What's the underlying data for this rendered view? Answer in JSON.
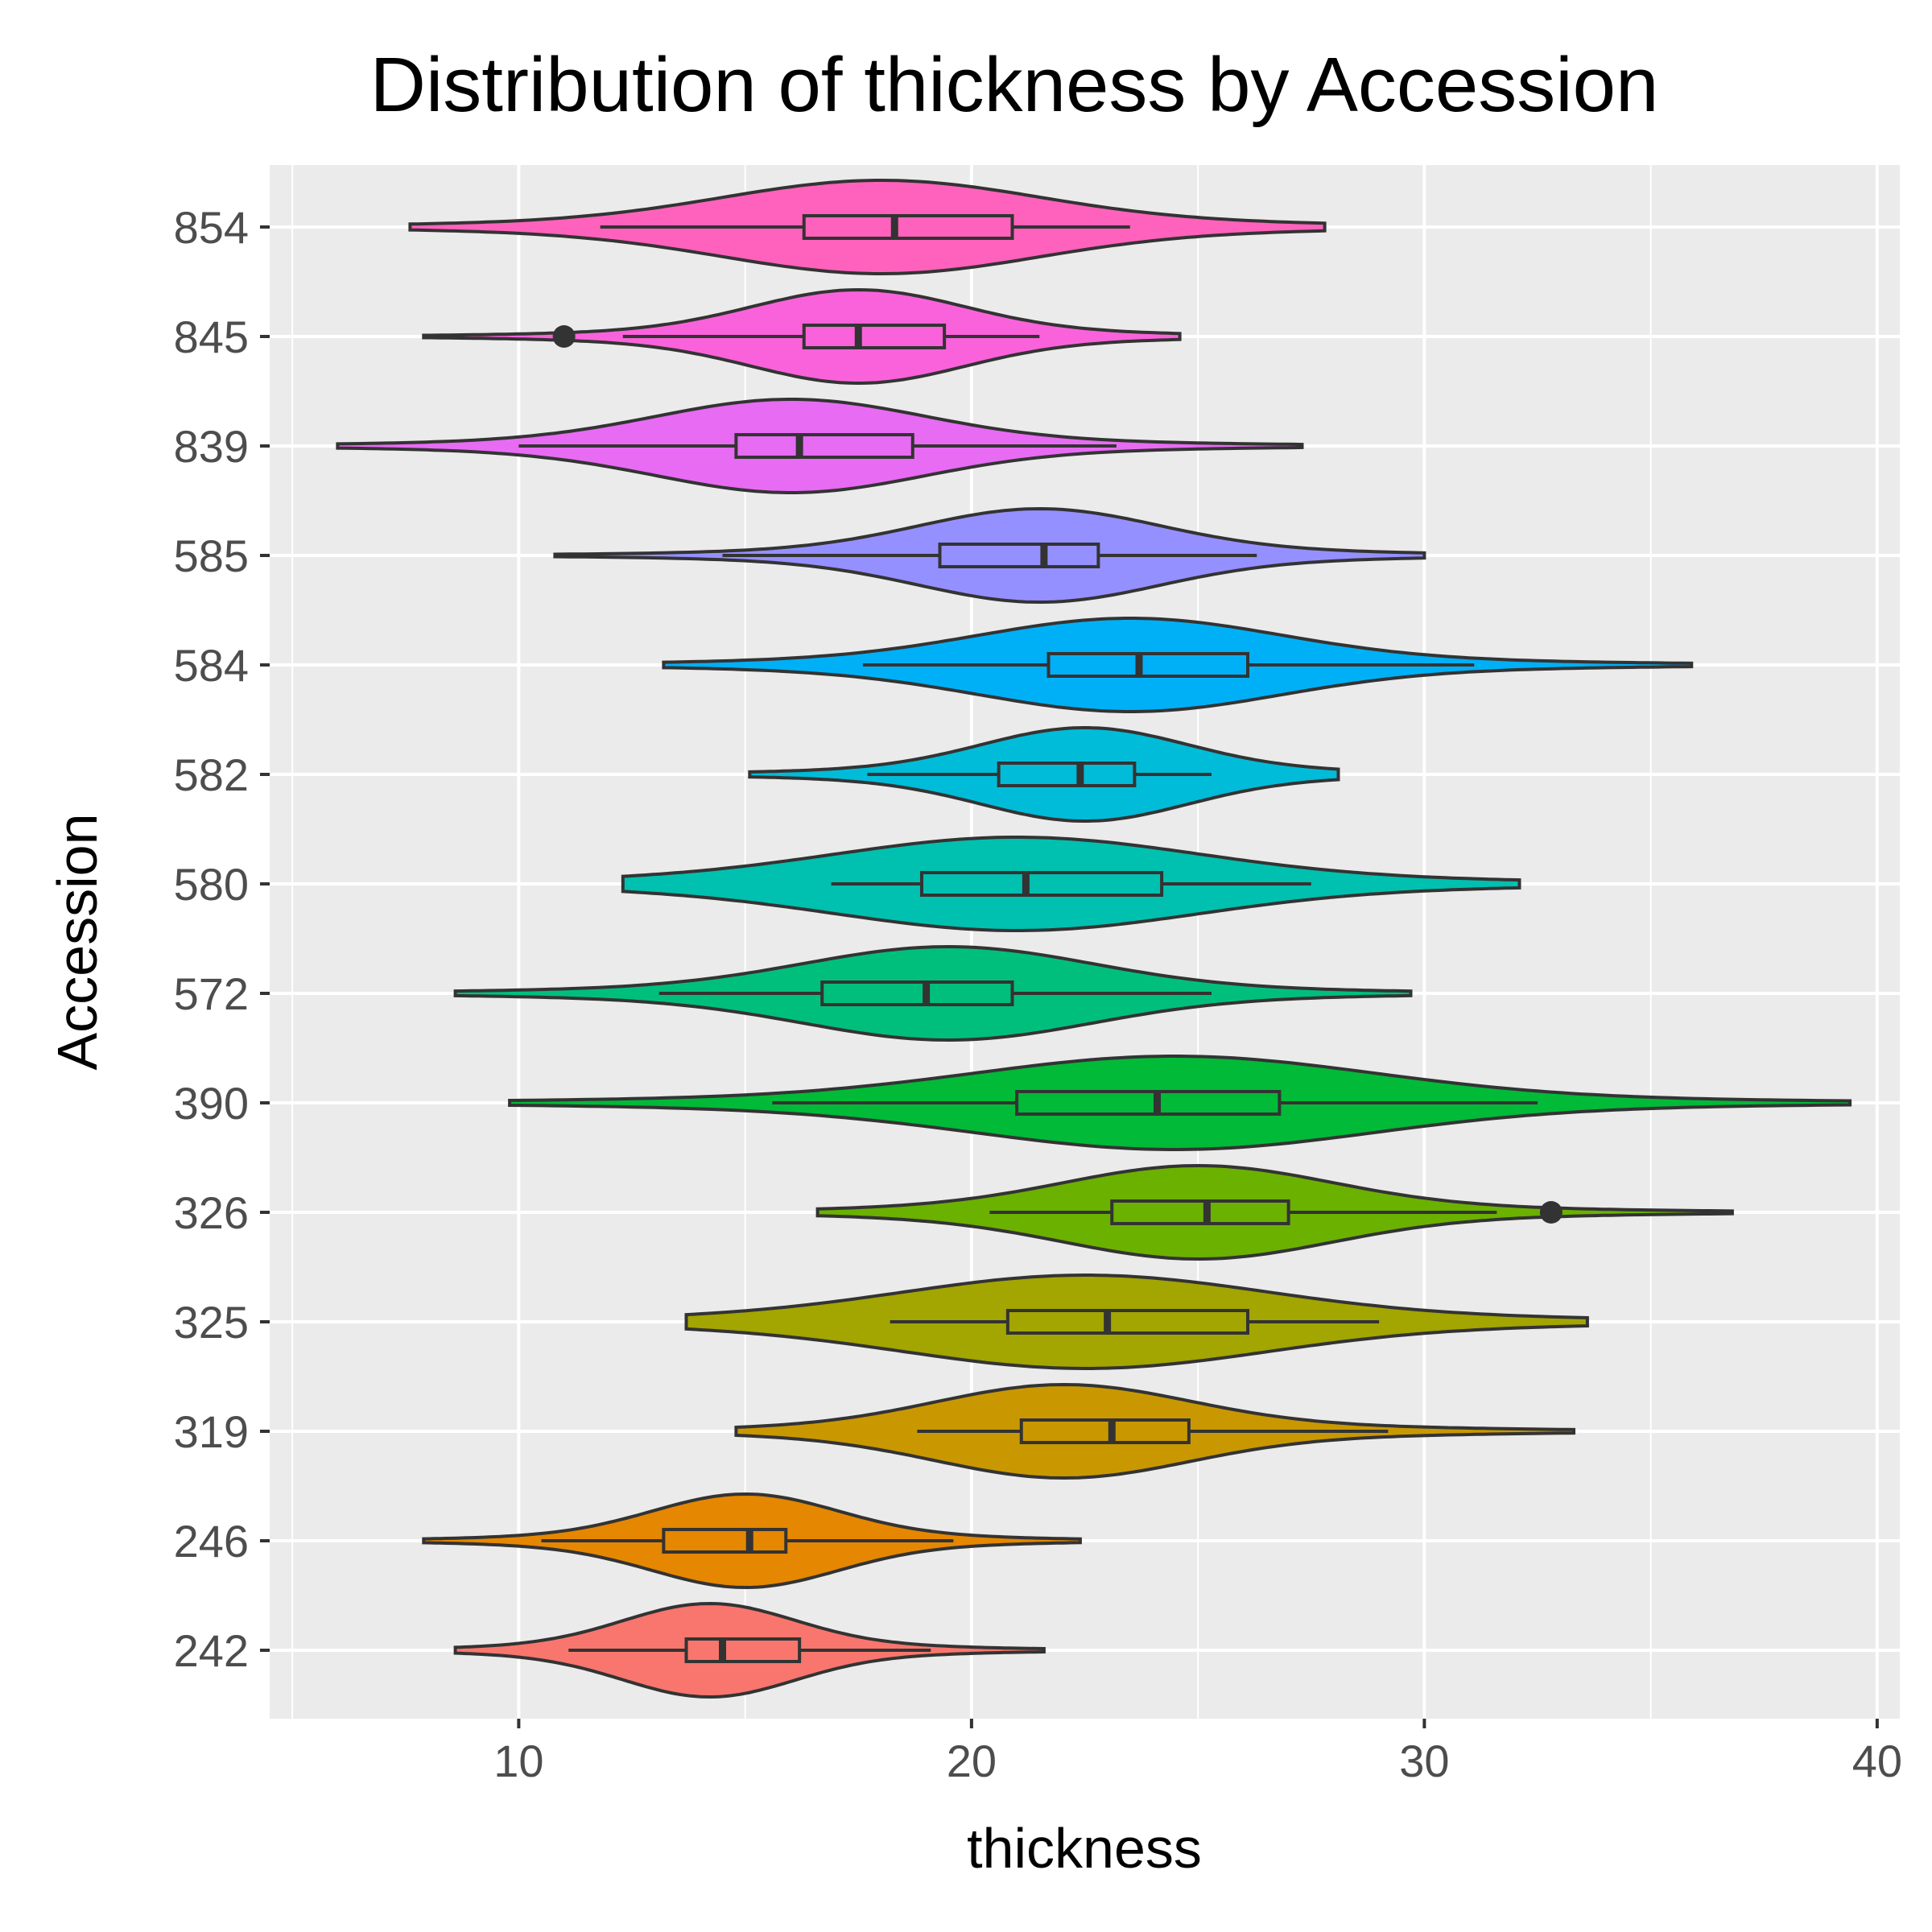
{
  "chart_data": {
    "type": "violin",
    "orientation": "horizontal",
    "title": "Distribution of thickness by Accession",
    "xlabel": "thickness",
    "ylabel": "Accession",
    "xlim": [
      4.5,
      40.5
    ],
    "xticks": [
      10,
      20,
      30,
      40
    ],
    "xtick_labels": [
      "10",
      "20",
      "30",
      "40"
    ],
    "grid": true,
    "legend": "none",
    "categories": [
      "242",
      "246",
      "319",
      "325",
      "326",
      "390",
      "572",
      "580",
      "582",
      "584",
      "585",
      "839",
      "845",
      "854"
    ],
    "series": [
      {
        "category": "242",
        "color": "#F8766D",
        "min": 8.6,
        "max": 21.6,
        "q1": 13.7,
        "median": 14.5,
        "q3": 16.2,
        "whisker_low": 11.1,
        "whisker_high": 19.1,
        "outliers": [],
        "density_peak": 14.2
      },
      {
        "category": "246",
        "color": "#E58700",
        "min": 7.9,
        "max": 22.4,
        "q1": 13.2,
        "median": 15.1,
        "q3": 15.9,
        "whisker_low": 10.5,
        "whisker_high": 19.6,
        "outliers": [],
        "density_peak": 15.0
      },
      {
        "category": "319",
        "color": "#C99800",
        "min": 14.8,
        "max": 33.3,
        "q1": 21.1,
        "median": 23.1,
        "q3": 24.8,
        "whisker_low": 18.8,
        "whisker_high": 29.2,
        "outliers": [],
        "density_peak": 22.0
      },
      {
        "category": "325",
        "color": "#A3A500",
        "min": 13.7,
        "max": 33.6,
        "q1": 20.8,
        "median": 23.0,
        "q3": 26.1,
        "whisker_low": 18.2,
        "whisker_high": 29.0,
        "outliers": [],
        "density_peak": 22.5
      },
      {
        "category": "326",
        "color": "#6BB100",
        "min": 16.6,
        "max": 36.8,
        "q1": 23.1,
        "median": 25.2,
        "q3": 27.0,
        "whisker_low": 20.4,
        "whisker_high": 31.6,
        "outliers": [
          32.8
        ],
        "density_peak": 25.0
      },
      {
        "category": "390",
        "color": "#00BA38",
        "min": 9.8,
        "max": 39.4,
        "q1": 21.0,
        "median": 24.1,
        "q3": 26.8,
        "whisker_low": 15.6,
        "whisker_high": 32.5,
        "outliers": [],
        "density_peak": 24.5
      },
      {
        "category": "572",
        "color": "#00BF7D",
        "min": 8.6,
        "max": 29.7,
        "q1": 16.7,
        "median": 19.0,
        "q3": 20.9,
        "whisker_low": 13.1,
        "whisker_high": 25.3,
        "outliers": [],
        "density_peak": 19.5
      },
      {
        "category": "580",
        "color": "#00C0AF",
        "min": 12.3,
        "max": 32.1,
        "q1": 18.9,
        "median": 21.2,
        "q3": 24.2,
        "whisker_low": 16.9,
        "whisker_high": 27.5,
        "outliers": [],
        "density_peak": 21.0
      },
      {
        "category": "582",
        "color": "#00BCD8",
        "min": 15.1,
        "max": 28.1,
        "q1": 20.6,
        "median": 22.4,
        "q3": 23.6,
        "whisker_low": 17.7,
        "whisker_high": 25.3,
        "outliers": [],
        "density_peak": 22.5
      },
      {
        "category": "584",
        "color": "#00B0F6",
        "min": 13.2,
        "max": 35.9,
        "q1": 21.7,
        "median": 23.7,
        "q3": 26.1,
        "whisker_low": 17.6,
        "whisker_high": 31.1,
        "outliers": [],
        "density_peak": 23.5
      },
      {
        "category": "585",
        "color": "#9590FF",
        "min": 10.8,
        "max": 30.0,
        "q1": 19.3,
        "median": 21.6,
        "q3": 22.8,
        "whisker_low": 14.5,
        "whisker_high": 26.3,
        "outliers": [],
        "density_peak": 21.5
      },
      {
        "category": "839",
        "color": "#E76BF3",
        "min": 6.0,
        "max": 27.3,
        "q1": 14.8,
        "median": 16.2,
        "q3": 18.7,
        "whisker_low": 10.0,
        "whisker_high": 23.2,
        "outliers": [],
        "density_peak": 16.0
      },
      {
        "category": "845",
        "color": "#FA62DB",
        "min": 7.9,
        "max": 24.6,
        "q1": 16.3,
        "median": 17.5,
        "q3": 19.4,
        "whisker_low": 12.3,
        "whisker_high": 21.5,
        "outliers": [
          11.0
        ],
        "density_peak": 17.5
      },
      {
        "category": "854",
        "color": "#FF62BC",
        "min": 7.6,
        "max": 27.8,
        "q1": 16.3,
        "median": 18.3,
        "q3": 20.9,
        "whisker_low": 11.8,
        "whisker_high": 23.5,
        "outliers": [],
        "density_peak": 18.0
      }
    ]
  }
}
